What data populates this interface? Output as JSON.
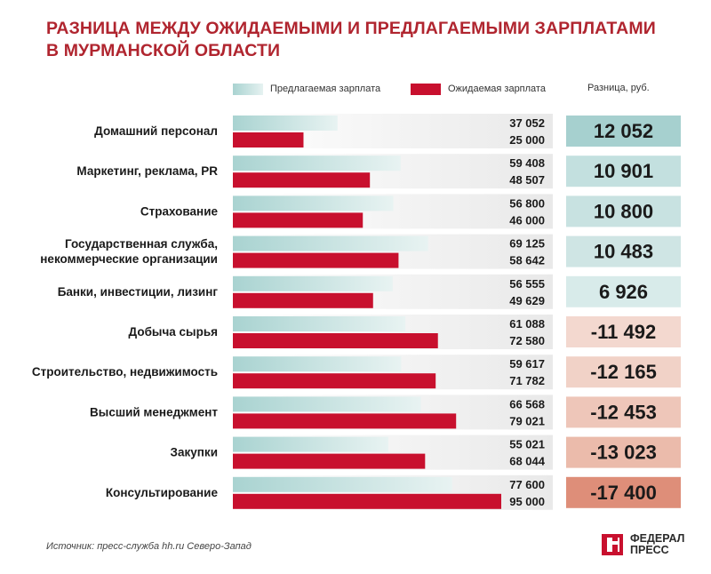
{
  "title_line1": "Разница между ожидаемыми и предлагаемыми зарплатами",
  "title_line2": "в Мурманской области",
  "legend": {
    "offered": "Предлагаемая зарплата",
    "expected": "Ожидаемая зарплата",
    "difference": "Разница, руб."
  },
  "colors": {
    "offered": "#c9e4e3",
    "expected": "#c8102e",
    "title": "#b0252f",
    "positive_diff": [
      "#a6d0cf",
      "#c3e0df",
      "#c8e2e1",
      "#cfe5e4",
      "#d8ebea"
    ],
    "negative_diff": [
      "#f3d8cf",
      "#f1d2c7",
      "#eec6b9",
      "#ebbbab",
      "#de8e79"
    ]
  },
  "chart_data": {
    "type": "bar",
    "orientation": "horizontal",
    "categories": [
      "Домашний персонал",
      "Маркетинг, реклама, PR",
      "Страхование",
      "Государственная служба,\nнекоммерческие организации",
      "Банки, инвестиции, лизинг",
      "Добыча сырья",
      "Строительство, недвижимость",
      "Высший менеджмент",
      "Закупки",
      "Консультирование"
    ],
    "series": [
      {
        "name": "Предлагаемая зарплата",
        "values": [
          37052,
          59408,
          56800,
          69125,
          56555,
          61088,
          59617,
          66568,
          55021,
          77600
        ]
      },
      {
        "name": "Ожидаемая зарплата",
        "values": [
          25000,
          48507,
          46000,
          58642,
          49629,
          72580,
          71782,
          79021,
          68044,
          95000
        ]
      }
    ],
    "value_labels": {
      "offered": [
        "37 052",
        "59 408",
        "56 800",
        "69 125",
        "56 555",
        "61 088",
        "59 617",
        "66 568",
        "55 021",
        "77 600"
      ],
      "expected": [
        "25 000",
        "48 507",
        "46 000",
        "58 642",
        "49 629",
        "72 580",
        "71 782",
        "79 021",
        "68 044",
        "95 000"
      ]
    },
    "difference": [
      12052,
      10901,
      10800,
      10483,
      6926,
      -11492,
      -12165,
      -12453,
      -13023,
      -17400
    ],
    "difference_labels": [
      "12 052",
      "10 901",
      "10 800",
      "10 483",
      "6 926",
      "-11 492",
      "-12 165",
      "-12 453",
      "-13 023",
      "-17 400"
    ],
    "xlim": [
      0,
      95000
    ],
    "grid": false
  },
  "source": "Источник: пресс-служба hh.ru Северо-Запад",
  "logo": {
    "line1": "ФЕДЕРАЛ",
    "line2": "ПРЕСС"
  }
}
